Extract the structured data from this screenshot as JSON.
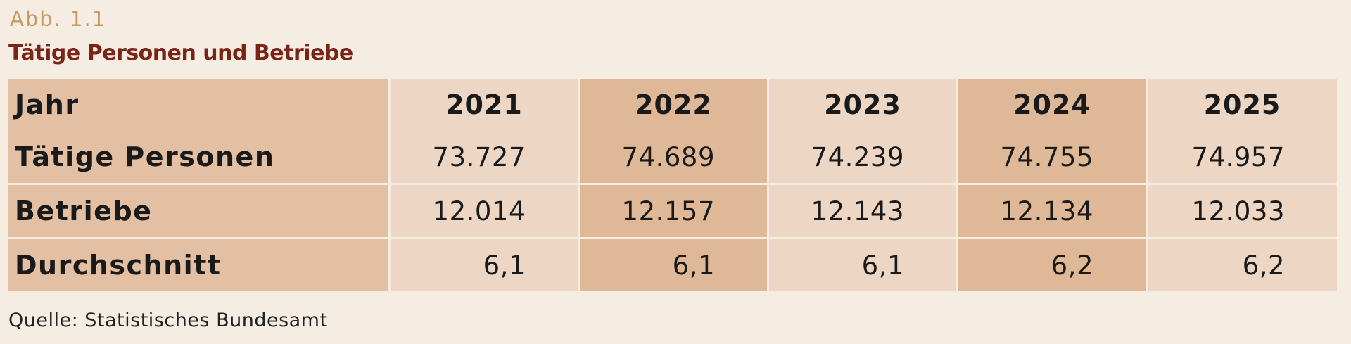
{
  "figure": {
    "label": "Abb. 1.1",
    "title": "Tätige Personen und Betriebe",
    "source": "Quelle: Statistisches Bundesamt"
  },
  "colors": {
    "background": "#f5ece2",
    "label": "#c89a66",
    "title": "#7a2418",
    "row_header": "#e3bfa3",
    "column_light": "#edd6c4",
    "column_dark": "#dfb897"
  },
  "chart_data": {
    "type": "table",
    "title": "Tätige Personen und Betriebe",
    "header_label": "Jahr",
    "columns": [
      "2021",
      "2022",
      "2023",
      "2024",
      "2025"
    ],
    "rows": [
      {
        "label": "Tätige Personen",
        "values": [
          "73.727",
          "74.689",
          "74.239",
          "74.755",
          "74.957"
        ]
      },
      {
        "label": "Betriebe",
        "values": [
          "12.014",
          "12.157",
          "12.143",
          "12.134",
          "12.033"
        ]
      },
      {
        "label": "Durchschnitt",
        "values": [
          "6,1",
          "6,1",
          "6,1",
          "6,2",
          "6,2"
        ]
      }
    ]
  }
}
